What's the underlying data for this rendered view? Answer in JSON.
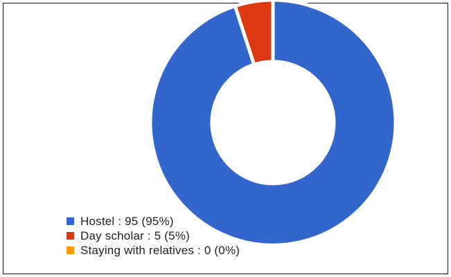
{
  "chart_data": {
    "type": "pie",
    "donut": true,
    "title": "",
    "slices": [
      {
        "label": "Hostel",
        "value": 95,
        "percent": "95%",
        "legend_text": "Hostel : 95 (95%)",
        "color": "#3366cc"
      },
      {
        "label": "Day scholar",
        "value": 5,
        "percent": "5%",
        "legend_text": "Day scholar : 5 (5%)",
        "color": "#dc3912"
      },
      {
        "label": "Staying with relatives",
        "value": 0,
        "percent": "0%",
        "legend_text": "Staying with relatives : 0 (0%)",
        "color": "#ff9900"
      }
    ],
    "legend_position": "bottom-left"
  }
}
